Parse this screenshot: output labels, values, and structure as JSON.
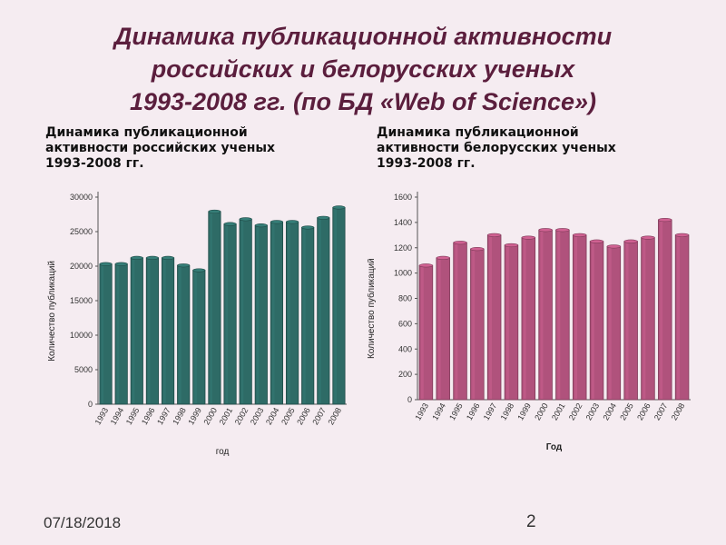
{
  "title": {
    "line1": "Динамика публикационной активности",
    "line2": "российских и белорусских ученых",
    "line3": "1993-2008 гг. (по БД «Web of Science»)"
  },
  "subtitles": {
    "left": {
      "line1": "Динамика публикационной",
      "line2": "активности российских ученых",
      "line3": "1993-2008 гг."
    },
    "right": {
      "line1": "Динамика публикационной",
      "line2": "активности белорусских ученых",
      "line3": "1993-2008 гг."
    }
  },
  "footer": {
    "date": "07/18/2018",
    "page": "2"
  },
  "colors": {
    "title": "#5b1e3d",
    "russia_bar": "#2e6b66",
    "belarus_bar": "#b0527c",
    "background": "#f5ecf1"
  },
  "chart_data": [
    {
      "type": "bar",
      "categories": [
        "1993",
        "1994",
        "1995",
        "1996",
        "1997",
        "1998",
        "1999",
        "2000",
        "2001",
        "2002",
        "2003",
        "2004",
        "2005",
        "2006",
        "2007",
        "2008"
      ],
      "values": [
        20300,
        20300,
        21200,
        21200,
        21200,
        20100,
        19400,
        27900,
        26100,
        26800,
        25900,
        26400,
        26400,
        25600,
        27000,
        28500
      ],
      "xlabel": "год",
      "ylabel": "Количество публикаций",
      "ylim": [
        0,
        30000
      ],
      "yticks": [
        "0",
        "5000",
        "10000",
        "15000",
        "20000",
        "25000",
        "30000"
      ],
      "grid": false,
      "color": "#2e6b66"
    },
    {
      "type": "bar",
      "categories": [
        "1993",
        "1994",
        "1995",
        "1996",
        "1997",
        "1998",
        "1999",
        "2000",
        "2001",
        "2002",
        "2003",
        "2004",
        "2005",
        "2006",
        "2007",
        "2008"
      ],
      "values": [
        1060,
        1120,
        1240,
        1190,
        1300,
        1220,
        1280,
        1340,
        1340,
        1300,
        1250,
        1210,
        1250,
        1280,
        1420,
        1300
      ],
      "xlabel": "Год",
      "ylabel": "Количество публикаций",
      "ylim": [
        0,
        1600
      ],
      "yticks": [
        "0",
        "200",
        "400",
        "600",
        "800",
        "1000",
        "1200",
        "1400",
        "1600"
      ],
      "grid": false,
      "color": "#b0527c"
    }
  ]
}
